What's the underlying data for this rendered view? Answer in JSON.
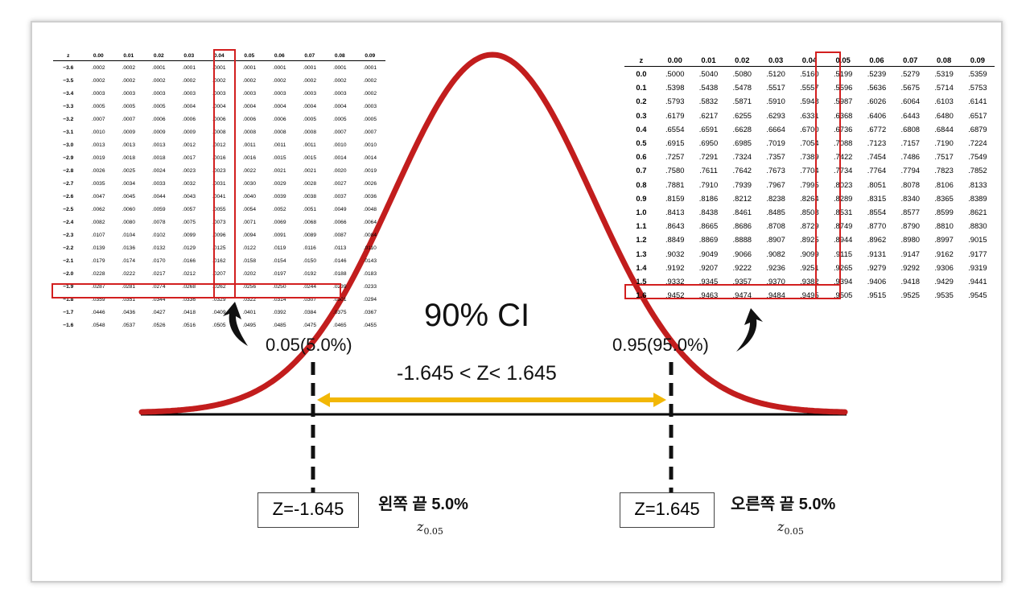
{
  "ci_title": "90% CI",
  "left_tail_label": "0.05(5.0%)",
  "right_tail_label": "0.95(95.0%)",
  "range_label": "-1.645 < Z< 1.645",
  "left_z_label": "Z=-1.645",
  "right_z_label": "Z=1.645",
  "left_korean_label": "왼쪽  끝 5.0%",
  "right_korean_label": "오른쪽 끝 5.0%",
  "z_symbol": "z",
  "z_subscript": "0.05",
  "colors": {
    "curve": "#c21d1d",
    "highlight": "#d21f1f",
    "arrow_range": "#f2b705",
    "axis": "#000000"
  },
  "left_table": {
    "headers": [
      "z",
      "0.00",
      "0.01",
      "0.02",
      "0.03",
      "0.04",
      "0.05",
      "0.06",
      "0.07",
      "0.08",
      "0.09"
    ],
    "rows": [
      [
        "−3.6",
        ".0002",
        ".0002",
        ".0001",
        ".0001",
        ".0001",
        ".0001",
        ".0001",
        ".0001",
        ".0001",
        ".0001"
      ],
      [
        "−3.5",
        ".0002",
        ".0002",
        ".0002",
        ".0002",
        ".0002",
        ".0002",
        ".0002",
        ".0002",
        ".0002",
        ".0002"
      ],
      [
        "−3.4",
        ".0003",
        ".0003",
        ".0003",
        ".0003",
        ".0003",
        ".0003",
        ".0003",
        ".0003",
        ".0003",
        ".0002"
      ],
      [
        "−3.3",
        ".0005",
        ".0005",
        ".0005",
        ".0004",
        ".0004",
        ".0004",
        ".0004",
        ".0004",
        ".0004",
        ".0003"
      ],
      [
        "−3.2",
        ".0007",
        ".0007",
        ".0006",
        ".0006",
        ".0006",
        ".0006",
        ".0006",
        ".0005",
        ".0005",
        ".0005"
      ],
      [
        "−3.1",
        ".0010",
        ".0009",
        ".0009",
        ".0009",
        ".0008",
        ".0008",
        ".0008",
        ".0008",
        ".0007",
        ".0007"
      ],
      [
        "−3.0",
        ".0013",
        ".0013",
        ".0013",
        ".0012",
        ".0012",
        ".0011",
        ".0011",
        ".0011",
        ".0010",
        ".0010"
      ],
      [
        "−2.9",
        ".0019",
        ".0018",
        ".0018",
        ".0017",
        ".0016",
        ".0016",
        ".0015",
        ".0015",
        ".0014",
        ".0014"
      ],
      [
        "−2.8",
        ".0026",
        ".0025",
        ".0024",
        ".0023",
        ".0023",
        ".0022",
        ".0021",
        ".0021",
        ".0020",
        ".0019"
      ],
      [
        "−2.7",
        ".0035",
        ".0034",
        ".0033",
        ".0032",
        ".0031",
        ".0030",
        ".0029",
        ".0028",
        ".0027",
        ".0026"
      ],
      [
        "−2.6",
        ".0047",
        ".0045",
        ".0044",
        ".0043",
        ".0041",
        ".0040",
        ".0039",
        ".0038",
        ".0037",
        ".0036"
      ],
      [
        "−2.5",
        ".0062",
        ".0060",
        ".0059",
        ".0057",
        ".0055",
        ".0054",
        ".0052",
        ".0051",
        ".0049",
        ".0048"
      ],
      [
        "−2.4",
        ".0082",
        ".0080",
        ".0078",
        ".0075",
        ".0073",
        ".0071",
        ".0069",
        ".0068",
        ".0066",
        ".0064"
      ],
      [
        "−2.3",
        ".0107",
        ".0104",
        ".0102",
        ".0099",
        ".0096",
        ".0094",
        ".0091",
        ".0089",
        ".0087",
        ".0084"
      ],
      [
        "−2.2",
        ".0139",
        ".0136",
        ".0132",
        ".0129",
        ".0125",
        ".0122",
        ".0119",
        ".0116",
        ".0113",
        ".0110"
      ],
      [
        "−2.1",
        ".0179",
        ".0174",
        ".0170",
        ".0166",
        ".0162",
        ".0158",
        ".0154",
        ".0150",
        ".0146",
        ".0143"
      ],
      [
        "−2.0",
        ".0228",
        ".0222",
        ".0217",
        ".0212",
        ".0207",
        ".0202",
        ".0197",
        ".0192",
        ".0188",
        ".0183"
      ],
      [
        "−1.9",
        ".0287",
        ".0281",
        ".0274",
        ".0268",
        ".0262",
        ".0256",
        ".0250",
        ".0244",
        ".0239",
        ".0233"
      ],
      [
        "−1.8",
        ".0359",
        ".0351",
        ".0344",
        ".0336",
        ".0329",
        ".0322",
        ".0314",
        ".0307",
        ".0301",
        ".0294"
      ],
      [
        "−1.7",
        ".0446",
        ".0436",
        ".0427",
        ".0418",
        ".0409",
        ".0401",
        ".0392",
        ".0384",
        ".0375",
        ".0367"
      ],
      [
        "−1.6",
        ".0548",
        ".0537",
        ".0526",
        ".0516",
        ".0505",
        ".0495",
        ".0485",
        ".0475",
        ".0465",
        ".0455"
      ]
    ]
  },
  "right_table": {
    "headers": [
      "z",
      "0.00",
      "0.01",
      "0.02",
      "0.03",
      "0.04",
      "0.05",
      "0.06",
      "0.07",
      "0.08",
      "0.09"
    ],
    "rows": [
      [
        "0.0",
        ".5000",
        ".5040",
        ".5080",
        ".5120",
        ".5160",
        ".5199",
        ".5239",
        ".5279",
        ".5319",
        ".5359"
      ],
      [
        "0.1",
        ".5398",
        ".5438",
        ".5478",
        ".5517",
        ".5557",
        ".5596",
        ".5636",
        ".5675",
        ".5714",
        ".5753"
      ],
      [
        "0.2",
        ".5793",
        ".5832",
        ".5871",
        ".5910",
        ".5948",
        ".5987",
        ".6026",
        ".6064",
        ".6103",
        ".6141"
      ],
      [
        "0.3",
        ".6179",
        ".6217",
        ".6255",
        ".6293",
        ".6331",
        ".6368",
        ".6406",
        ".6443",
        ".6480",
        ".6517"
      ],
      [
        "0.4",
        ".6554",
        ".6591",
        ".6628",
        ".6664",
        ".6700",
        ".6736",
        ".6772",
        ".6808",
        ".6844",
        ".6879"
      ],
      [
        "0.5",
        ".6915",
        ".6950",
        ".6985",
        ".7019",
        ".7054",
        ".7088",
        ".7123",
        ".7157",
        ".7190",
        ".7224"
      ],
      [
        "0.6",
        ".7257",
        ".7291",
        ".7324",
        ".7357",
        ".7389",
        ".7422",
        ".7454",
        ".7486",
        ".7517",
        ".7549"
      ],
      [
        "0.7",
        ".7580",
        ".7611",
        ".7642",
        ".7673",
        ".7704",
        ".7734",
        ".7764",
        ".7794",
        ".7823",
        ".7852"
      ],
      [
        "0.8",
        ".7881",
        ".7910",
        ".7939",
        ".7967",
        ".7995",
        ".8023",
        ".8051",
        ".8078",
        ".8106",
        ".8133"
      ],
      [
        "0.9",
        ".8159",
        ".8186",
        ".8212",
        ".8238",
        ".8264",
        ".8289",
        ".8315",
        ".8340",
        ".8365",
        ".8389"
      ],
      [
        "1.0",
        ".8413",
        ".8438",
        ".8461",
        ".8485",
        ".8508",
        ".8531",
        ".8554",
        ".8577",
        ".8599",
        ".8621"
      ],
      [
        "1.1",
        ".8643",
        ".8665",
        ".8686",
        ".8708",
        ".8729",
        ".8749",
        ".8770",
        ".8790",
        ".8810",
        ".8830"
      ],
      [
        "1.2",
        ".8849",
        ".8869",
        ".8888",
        ".8907",
        ".8925",
        ".8944",
        ".8962",
        ".8980",
        ".8997",
        ".9015"
      ],
      [
        "1.3",
        ".9032",
        ".9049",
        ".9066",
        ".9082",
        ".9099",
        ".9115",
        ".9131",
        ".9147",
        ".9162",
        ".9177"
      ],
      [
        "1.4",
        ".9192",
        ".9207",
        ".9222",
        ".9236",
        ".9251",
        ".9265",
        ".9279",
        ".9292",
        ".9306",
        ".9319"
      ],
      [
        "1.5",
        ".9332",
        ".9345",
        ".9357",
        ".9370",
        ".9382",
        ".9394",
        ".9406",
        ".9418",
        ".9429",
        ".9441"
      ],
      [
        "1.6",
        ".9452",
        ".9463",
        ".9474",
        ".9484",
        ".9495",
        ".9505",
        ".9515",
        ".9525",
        ".9535",
        ".9545"
      ]
    ]
  }
}
